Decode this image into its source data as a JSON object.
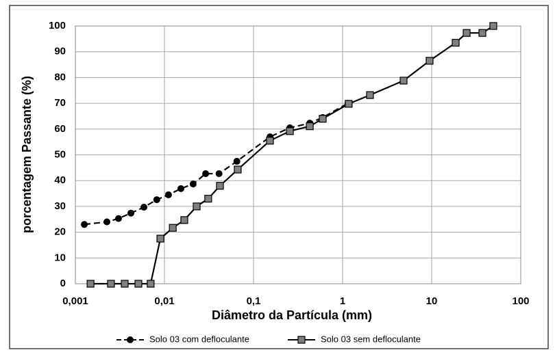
{
  "chart_data": {
    "type": "line",
    "xlabel": "Diâmetro da Partícula (mm)",
    "ylabel": "porcentagem Passante (%)",
    "xlog": true,
    "xlim": [
      0.001,
      100
    ],
    "xticks": [
      {
        "value": 0.001,
        "label": "0,001"
      },
      {
        "value": 0.01,
        "label": "0,01"
      },
      {
        "value": 0.1,
        "label": "0,1"
      },
      1,
      10,
      100
    ],
    "ylim": [
      0,
      100
    ],
    "yticks": [
      0,
      10,
      20,
      30,
      40,
      50,
      60,
      70,
      80,
      90,
      100
    ],
    "grid": true,
    "legend": "bottom",
    "series": [
      {
        "name": "Solo 03 com defloculante",
        "color": "#000000",
        "marker": "circle",
        "dashed": true,
        "x": [
          0.00126,
          0.00226,
          0.00305,
          0.0042,
          0.00588,
          0.0082,
          0.0111,
          0.0153,
          0.021,
          0.029,
          0.041,
          0.065,
          0.153,
          0.256,
          0.428,
          0.598,
          1.15
        ],
        "values": [
          23,
          24,
          25.3,
          27.4,
          29.7,
          32.6,
          34.5,
          36.9,
          38.7,
          42.7,
          42.7,
          47.5,
          57,
          60.5,
          62.3,
          64.5,
          70
        ]
      },
      {
        "name": "Solo 03 sem defloculante",
        "color": "#000000",
        "marker": "square",
        "dashed": false,
        "x": [
          0.00148,
          0.00251,
          0.00358,
          0.0051,
          0.007,
          0.009,
          0.0124,
          0.0167,
          0.023,
          0.031,
          0.042,
          0.0665,
          0.153,
          0.256,
          0.428,
          0.598,
          1.17,
          2.03,
          4.84,
          9.48,
          18.6,
          24.7,
          37.1,
          49.2
        ],
        "values": [
          0,
          0,
          0,
          0,
          0,
          17.5,
          21.7,
          24.7,
          30,
          33,
          38,
          44.3,
          55.5,
          59.2,
          61.1,
          64,
          69.8,
          73.2,
          78.8,
          86.5,
          93.5,
          97.3,
          97.3,
          100
        ]
      }
    ]
  }
}
